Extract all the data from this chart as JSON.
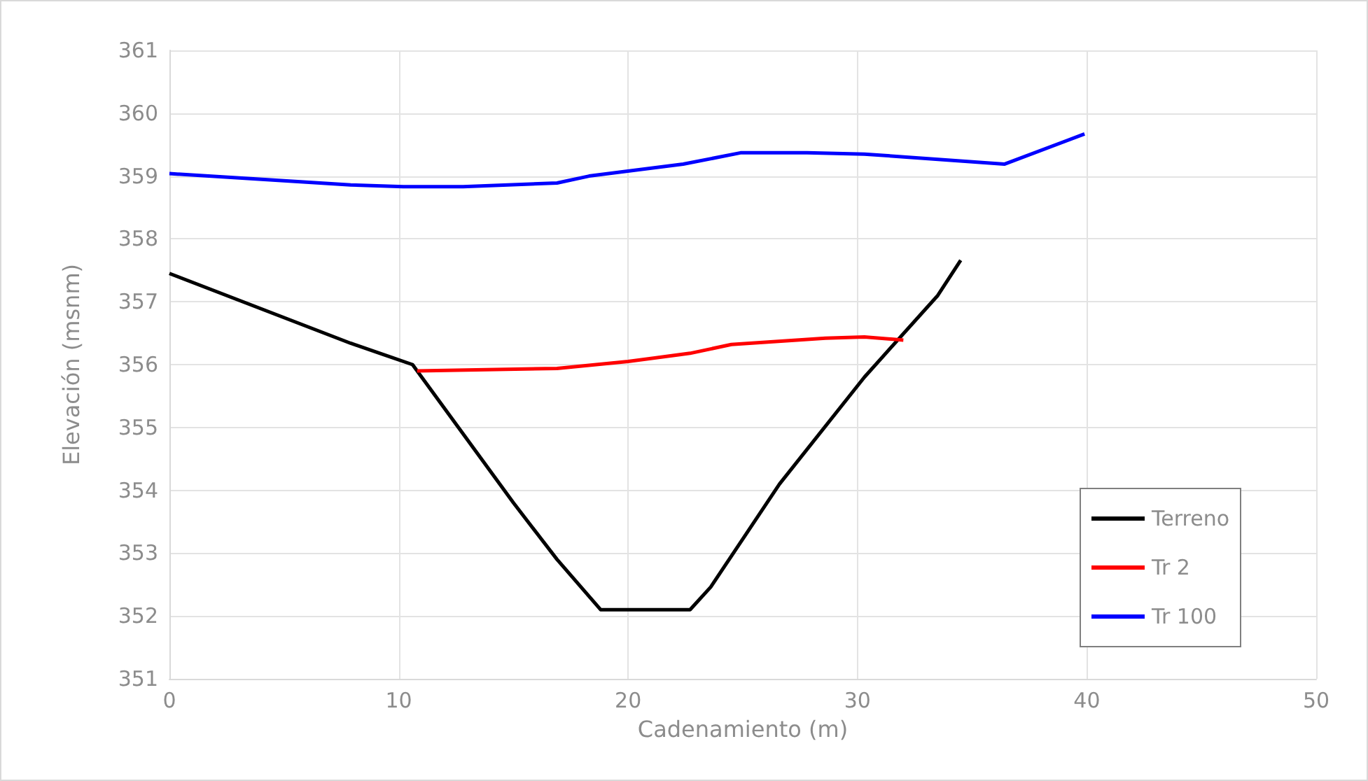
{
  "chart_data": {
    "type": "line",
    "xlabel": "Cadenamiento (m)",
    "ylabel": "Elevación (msnm)",
    "xlim": [
      0,
      50
    ],
    "xticks": [
      0,
      10,
      20,
      30,
      40,
      50
    ],
    "ylim": [
      351,
      361
    ],
    "yticks": [
      351,
      352,
      353,
      354,
      355,
      356,
      357,
      358,
      359,
      360,
      361
    ],
    "grid": true,
    "legend": "bottom right",
    "marker": "none",
    "line_style": "solid",
    "series": [
      {
        "name": "Terreno",
        "color": "#000000",
        "x": [
          0,
          7.9,
          10.6,
          15.0,
          16.9,
          18.8,
          22.7,
          23.6,
          26.6,
          30.3,
          33.5,
          34.5
        ],
        "values": [
          357.45,
          356.34,
          356.0,
          353.8,
          352.9,
          352.1,
          352.1,
          352.46,
          354.1,
          355.8,
          357.1,
          357.66
        ]
      },
      {
        "name": "Tr 2",
        "color": "#ff0000",
        "x": [
          10.8,
          16.9,
          20.0,
          22.7,
          24.5,
          28.6,
          30.3,
          32.0
        ],
        "values": [
          355.9,
          355.94,
          356.05,
          356.18,
          356.32,
          356.42,
          356.44,
          356.39
        ]
      },
      {
        "name": "Tr 100",
        "color": "#0000ff",
        "x": [
          0,
          7.9,
          10.2,
          12.8,
          16.9,
          18.3,
          22.4,
          24.9,
          27.8,
          30.3,
          36.4,
          39.9
        ],
        "values": [
          359.04,
          358.86,
          358.83,
          358.83,
          358.89,
          359.0,
          359.19,
          359.37,
          359.37,
          359.35,
          359.19,
          359.67
        ]
      }
    ]
  }
}
